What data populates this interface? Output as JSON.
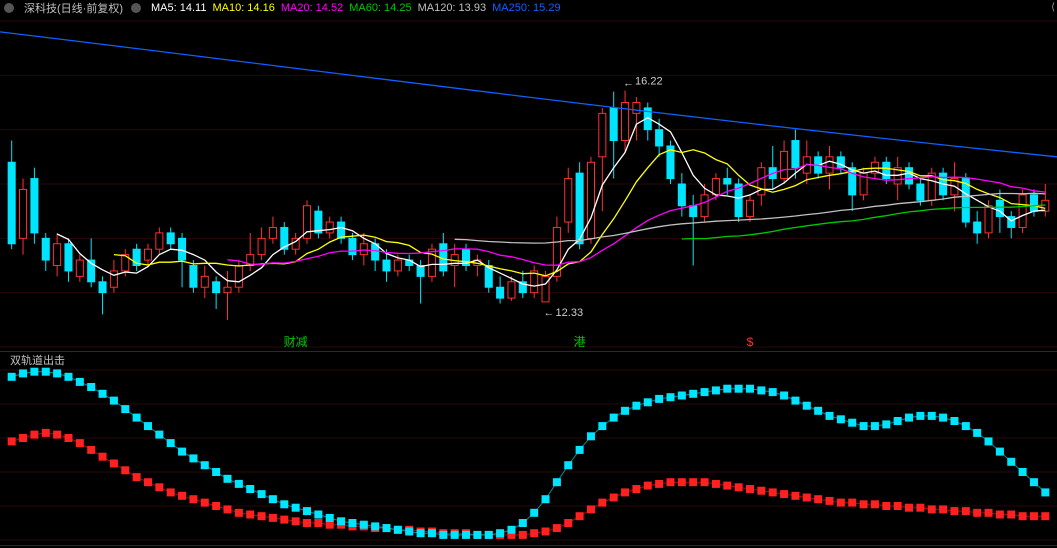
{
  "header": {
    "stock_title": "深科技(日线·前复权)",
    "ma": [
      {
        "key": "MA5",
        "value": "14.11",
        "color": "#ffffff"
      },
      {
        "key": "MA10",
        "value": "14.16",
        "color": "#ffff00"
      },
      {
        "key": "MA20",
        "value": "14.52",
        "color": "#ff00ff"
      },
      {
        "key": "MA60",
        "value": "14.25",
        "color": "#00c800"
      },
      {
        "key": "MA120",
        "value": "13.93",
        "color": "#c0c0c0"
      },
      {
        "key": "MA250",
        "value": "15.29",
        "color": "#1060ff"
      }
    ]
  },
  "main_chart": {
    "bg": "#000000",
    "grid_color": "#2a0707",
    "y_min": 11.5,
    "y_max": 17.5,
    "candle_up_color": "#ff3030",
    "candle_dn_color": "#00e5ff",
    "annotations": [
      {
        "type": "price",
        "x": 54,
        "price": 16.22,
        "text": "16.22",
        "dir": "down"
      },
      {
        "type": "price",
        "x": 47,
        "price": 12.33,
        "text": "12.33",
        "dir": "up"
      },
      {
        "type": "label",
        "x": 25,
        "text": "财减",
        "color": "#00c800"
      },
      {
        "type": "label",
        "x": 50,
        "text": "港",
        "color": "#00c800"
      },
      {
        "type": "label",
        "x": 65,
        "text": "$",
        "color": "#ff3030"
      }
    ],
    "ma_colors": {
      "MA5": "#ffffff",
      "MA10": "#ffff00",
      "MA20": "#ff00ff",
      "MA60": "#00c800",
      "MA120": "#c0c0c0",
      "MA250": "#1060ff"
    },
    "candles": [
      {
        "o": 14.9,
        "c": 13.4,
        "h": 15.3,
        "l": 13.3
      },
      {
        "o": 13.5,
        "c": 14.4,
        "h": 14.6,
        "l": 13.2
      },
      {
        "o": 14.6,
        "c": 13.6,
        "h": 14.8,
        "l": 13.4
      },
      {
        "o": 13.5,
        "c": 13.1,
        "h": 13.6,
        "l": 12.9
      },
      {
        "o": 13.0,
        "c": 13.4,
        "h": 13.6,
        "l": 12.8
      },
      {
        "o": 13.4,
        "c": 12.9,
        "h": 13.5,
        "l": 12.7
      },
      {
        "o": 12.8,
        "c": 13.1,
        "h": 13.2,
        "l": 12.7
      },
      {
        "o": 13.1,
        "c": 12.7,
        "h": 13.5,
        "l": 12.6
      },
      {
        "o": 12.7,
        "c": 12.5,
        "h": 12.8,
        "l": 12.1
      },
      {
        "o": 12.6,
        "c": 12.9,
        "h": 13.1,
        "l": 12.5
      },
      {
        "o": 12.9,
        "c": 13.2,
        "h": 13.3,
        "l": 12.8
      },
      {
        "o": 13.3,
        "c": 13.0,
        "h": 13.4,
        "l": 12.9
      },
      {
        "o": 13.1,
        "c": 13.3,
        "h": 13.4,
        "l": 13.0
      },
      {
        "o": 13.3,
        "c": 13.6,
        "h": 13.7,
        "l": 13.2
      },
      {
        "o": 13.6,
        "c": 13.4,
        "h": 13.7,
        "l": 13.3
      },
      {
        "o": 13.5,
        "c": 13.1,
        "h": 13.6,
        "l": 12.6
      },
      {
        "o": 13.0,
        "c": 12.6,
        "h": 13.1,
        "l": 12.5
      },
      {
        "o": 12.6,
        "c": 12.8,
        "h": 13.0,
        "l": 12.4
      },
      {
        "o": 12.7,
        "c": 12.5,
        "h": 12.8,
        "l": 12.2
      },
      {
        "o": 12.5,
        "c": 12.6,
        "h": 12.9,
        "l": 12.0
      },
      {
        "o": 12.6,
        "c": 13.0,
        "h": 13.1,
        "l": 12.5
      },
      {
        "o": 13.0,
        "c": 13.2,
        "h": 13.6,
        "l": 12.9
      },
      {
        "o": 13.2,
        "c": 13.5,
        "h": 13.7,
        "l": 13.1
      },
      {
        "o": 13.5,
        "c": 13.7,
        "h": 13.9,
        "l": 13.4
      },
      {
        "o": 13.7,
        "c": 13.3,
        "h": 13.8,
        "l": 13.2
      },
      {
        "o": 13.3,
        "c": 13.5,
        "h": 13.6,
        "l": 13.2
      },
      {
        "o": 13.5,
        "c": 14.1,
        "h": 14.2,
        "l": 13.4
      },
      {
        "o": 14.0,
        "c": 13.6,
        "h": 14.1,
        "l": 13.5
      },
      {
        "o": 13.6,
        "c": 13.8,
        "h": 13.9,
        "l": 13.5
      },
      {
        "o": 13.8,
        "c": 13.5,
        "h": 13.9,
        "l": 13.4
      },
      {
        "o": 13.5,
        "c": 13.2,
        "h": 13.6,
        "l": 13.1
      },
      {
        "o": 13.2,
        "c": 13.4,
        "h": 13.6,
        "l": 13.0
      },
      {
        "o": 13.4,
        "c": 13.1,
        "h": 13.5,
        "l": 12.9
      },
      {
        "o": 13.1,
        "c": 12.9,
        "h": 13.3,
        "l": 12.7
      },
      {
        "o": 12.9,
        "c": 13.1,
        "h": 13.2,
        "l": 12.8
      },
      {
        "o": 13.1,
        "c": 13.0,
        "h": 13.2,
        "l": 12.9
      },
      {
        "o": 13.0,
        "c": 12.8,
        "h": 13.1,
        "l": 12.3
      },
      {
        "o": 12.8,
        "c": 13.3,
        "h": 13.4,
        "l": 12.7
      },
      {
        "o": 13.4,
        "c": 12.9,
        "h": 13.6,
        "l": 12.8
      },
      {
        "o": 13.0,
        "c": 13.2,
        "h": 13.4,
        "l": 12.6
      },
      {
        "o": 13.3,
        "c": 13.0,
        "h": 13.4,
        "l": 12.9
      },
      {
        "o": 13.0,
        "c": 13.1,
        "h": 13.2,
        "l": 12.8
      },
      {
        "o": 13.0,
        "c": 12.6,
        "h": 13.1,
        "l": 12.5
      },
      {
        "o": 12.6,
        "c": 12.4,
        "h": 12.8,
        "l": 12.3
      },
      {
        "o": 12.4,
        "c": 12.7,
        "h": 12.8,
        "l": 12.35
      },
      {
        "o": 12.7,
        "c": 12.5,
        "h": 12.9,
        "l": 12.4
      },
      {
        "o": 12.5,
        "c": 12.9,
        "h": 13.0,
        "l": 12.4
      },
      {
        "o": 12.33,
        "c": 12.8,
        "h": 12.9,
        "l": 12.33
      },
      {
        "o": 12.8,
        "c": 13.7,
        "h": 13.9,
        "l": 12.7
      },
      {
        "o": 13.8,
        "c": 14.6,
        "h": 14.8,
        "l": 13.6
      },
      {
        "o": 14.7,
        "c": 13.4,
        "h": 14.9,
        "l": 13.3
      },
      {
        "o": 13.5,
        "c": 14.9,
        "h": 15.0,
        "l": 13.4
      },
      {
        "o": 15.0,
        "c": 15.8,
        "h": 15.9,
        "l": 14.0
      },
      {
        "o": 15.9,
        "c": 15.3,
        "h": 16.2,
        "l": 14.6
      },
      {
        "o": 15.3,
        "c": 16.0,
        "h": 16.22,
        "l": 15.1
      },
      {
        "o": 15.8,
        "c": 16.0,
        "h": 16.1,
        "l": 15.3
      },
      {
        "o": 15.9,
        "c": 15.5,
        "h": 16.0,
        "l": 15.3
      },
      {
        "o": 15.5,
        "c": 15.2,
        "h": 15.7,
        "l": 15.0
      },
      {
        "o": 15.2,
        "c": 14.6,
        "h": 15.3,
        "l": 14.5
      },
      {
        "o": 14.5,
        "c": 14.1,
        "h": 14.7,
        "l": 13.9
      },
      {
        "o": 14.1,
        "c": 13.9,
        "h": 14.3,
        "l": 13.0
      },
      {
        "o": 13.9,
        "c": 14.3,
        "h": 14.5,
        "l": 13.8
      },
      {
        "o": 14.3,
        "c": 14.6,
        "h": 14.7,
        "l": 14.2
      },
      {
        "o": 14.6,
        "c": 14.5,
        "h": 14.8,
        "l": 14.3
      },
      {
        "o": 14.5,
        "c": 13.9,
        "h": 14.6,
        "l": 13.8
      },
      {
        "o": 13.9,
        "c": 14.2,
        "h": 14.3,
        "l": 13.8
      },
      {
        "o": 14.3,
        "c": 14.8,
        "h": 14.9,
        "l": 14.1
      },
      {
        "o": 14.8,
        "c": 14.6,
        "h": 15.2,
        "l": 14.4
      },
      {
        "o": 14.6,
        "c": 15.1,
        "h": 15.3,
        "l": 14.5
      },
      {
        "o": 15.3,
        "c": 14.8,
        "h": 15.5,
        "l": 14.6
      },
      {
        "o": 14.7,
        "c": 15.0,
        "h": 15.3,
        "l": 14.5
      },
      {
        "o": 15.0,
        "c": 14.7,
        "h": 15.1,
        "l": 14.6
      },
      {
        "o": 14.7,
        "c": 15.0,
        "h": 15.2,
        "l": 14.4
      },
      {
        "o": 15.0,
        "c": 14.8,
        "h": 15.1,
        "l": 14.7
      },
      {
        "o": 14.8,
        "c": 14.3,
        "h": 14.9,
        "l": 14.0
      },
      {
        "o": 14.3,
        "c": 14.7,
        "h": 14.8,
        "l": 14.2
      },
      {
        "o": 14.7,
        "c": 14.9,
        "h": 15.0,
        "l": 14.6
      },
      {
        "o": 14.9,
        "c": 14.6,
        "h": 15.0,
        "l": 14.5
      },
      {
        "o": 14.5,
        "c": 14.8,
        "h": 15.0,
        "l": 14.2
      },
      {
        "o": 14.8,
        "c": 14.5,
        "h": 14.9,
        "l": 14.4
      },
      {
        "o": 14.5,
        "c": 14.2,
        "h": 14.6,
        "l": 14.1
      },
      {
        "o": 14.2,
        "c": 14.7,
        "h": 14.8,
        "l": 14.1
      },
      {
        "o": 14.7,
        "c": 14.3,
        "h": 14.8,
        "l": 14.2
      },
      {
        "o": 14.3,
        "c": 14.6,
        "h": 14.9,
        "l": 14.0
      },
      {
        "o": 14.6,
        "c": 13.8,
        "h": 14.7,
        "l": 13.7
      },
      {
        "o": 13.8,
        "c": 13.6,
        "h": 14.0,
        "l": 13.4
      },
      {
        "o": 13.6,
        "c": 14.1,
        "h": 14.2,
        "l": 13.5
      },
      {
        "o": 14.2,
        "c": 13.9,
        "h": 14.4,
        "l": 13.6
      },
      {
        "o": 13.9,
        "c": 13.7,
        "h": 14.0,
        "l": 13.5
      },
      {
        "o": 13.7,
        "c": 14.3,
        "h": 14.4,
        "l": 13.6
      },
      {
        "o": 14.3,
        "c": 14.0,
        "h": 14.4,
        "l": 13.9
      },
      {
        "o": 14.0,
        "c": 14.2,
        "h": 14.5,
        "l": 13.9
      }
    ]
  },
  "sub_chart": {
    "title": "双轨道出击",
    "bg": "#000000",
    "grid_color": "#2a0707",
    "cyan_color": "#00e5ff",
    "red_color": "#ff2020",
    "box_size": 8,
    "cyan_series": [
      96,
      98,
      99,
      99,
      98,
      96,
      93,
      90,
      86,
      82,
      77,
      72,
      67,
      62,
      57,
      52,
      48,
      44,
      40,
      36,
      33,
      30,
      27,
      24,
      21,
      19,
      17,
      15,
      13,
      11,
      10,
      9,
      8,
      7,
      6,
      5,
      4,
      4,
      3,
      3,
      3,
      3,
      3,
      4,
      6,
      10,
      16,
      24,
      34,
      44,
      53,
      61,
      67,
      72,
      76,
      79,
      81,
      83,
      84,
      85,
      86,
      87,
      88,
      89,
      89,
      89,
      88,
      87,
      85,
      82,
      79,
      76,
      73,
      71,
      69,
      67,
      67,
      68,
      70,
      72,
      73,
      73,
      72,
      70,
      67,
      63,
      58,
      52,
      46,
      40,
      34,
      28
    ],
    "red_series": [
      58,
      60,
      62,
      63,
      62,
      60,
      57,
      53,
      49,
      45,
      41,
      37,
      34,
      31,
      28,
      26,
      24,
      22,
      20,
      18,
      16,
      15,
      14,
      13,
      12,
      11,
      10,
      10,
      9,
      9,
      8,
      8,
      7,
      7,
      6,
      6,
      5,
      5,
      4,
      4,
      4,
      3,
      3,
      3,
      3,
      3,
      4,
      5,
      7,
      10,
      14,
      18,
      22,
      25,
      28,
      30,
      32,
      33,
      34,
      34,
      34,
      34,
      33,
      32,
      31,
      30,
      29,
      28,
      27,
      26,
      25,
      24,
      23,
      22,
      22,
      21,
      21,
      20,
      20,
      19,
      19,
      18,
      18,
      17,
      17,
      16,
      16,
      15,
      15,
      14,
      14,
      14
    ]
  }
}
